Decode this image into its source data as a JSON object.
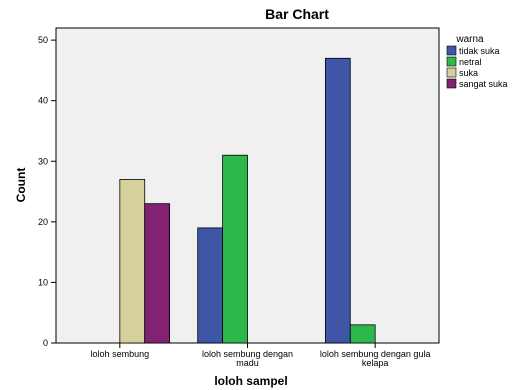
{
  "chart_data": {
    "type": "bar",
    "title": "Bar Chart",
    "xlabel": "loloh sampel",
    "ylabel": "Count",
    "ylim": [
      0,
      52
    ],
    "yticks": [
      0,
      10,
      20,
      30,
      40,
      50
    ],
    "grid": false,
    "legend_title": "warna",
    "legend_position": "right",
    "categories": [
      [
        "loloh sembung"
      ],
      [
        "loloh sembung dengan",
        "madu"
      ],
      [
        "loloh sembung dengan gula",
        "kelapa"
      ]
    ],
    "series": [
      {
        "name": "tidak suka",
        "color": "#3f55a6",
        "values": [
          0,
          19,
          47
        ]
      },
      {
        "name": "netral",
        "color": "#2eb84c",
        "values": [
          0,
          31,
          3
        ]
      },
      {
        "name": "suka",
        "color": "#d6d09a",
        "values": [
          27,
          0,
          0
        ]
      },
      {
        "name": "sangat suka",
        "color": "#832273",
        "values": [
          23,
          0,
          0
        ]
      }
    ],
    "plot_background": "#f0f0f0"
  }
}
